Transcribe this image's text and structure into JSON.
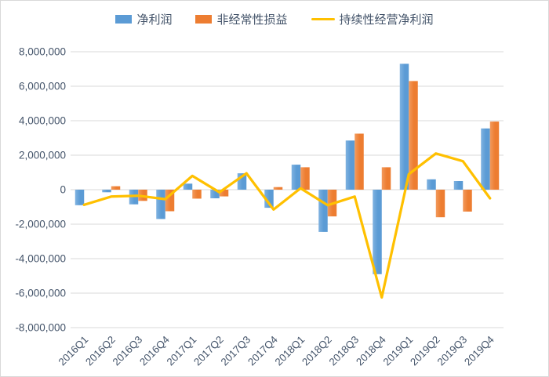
{
  "chart_data": {
    "type": "combo",
    "title": "",
    "xlabel": "",
    "ylabel": "",
    "categories": [
      "2016Q1",
      "2016Q2",
      "2016Q3",
      "2016Q4",
      "2017Q1",
      "2017Q2",
      "2017Q3",
      "2017Q4",
      "2018Q1",
      "2018Q2",
      "2018Q3",
      "2018Q4",
      "2019Q1",
      "2019Q2",
      "2019Q3",
      "2019Q4"
    ],
    "series": [
      {
        "name": "净利润",
        "type": "bar",
        "color": "#5B9BD5",
        "values": [
          -900000,
          -150000,
          -850000,
          -1700000,
          350000,
          -500000,
          950000,
          -1050000,
          1450000,
          -2450000,
          2850000,
          -4900000,
          7300000,
          600000,
          500000,
          3550000
        ]
      },
      {
        "name": "非经常性损益",
        "type": "bar",
        "color": "#ED7D31",
        "values": [
          0,
          200000,
          -650000,
          -1250000,
          -520000,
          -390000,
          0,
          150000,
          1300000,
          -1550000,
          3250000,
          1300000,
          6300000,
          -1600000,
          -1270000,
          3950000
        ]
      },
      {
        "name": "持续性经营净利润",
        "type": "line",
        "color": "#FFC000",
        "values": [
          -880000,
          -400000,
          -350000,
          -550000,
          800000,
          -150000,
          950000,
          -1150000,
          80000,
          -900000,
          -400000,
          -6250000,
          900000,
          2100000,
          1650000,
          -500000
        ]
      }
    ],
    "ylim": [
      -8000000,
      8000000
    ],
    "ytick_step": 2000000,
    "ytick_labels": [
      "8,000,000",
      "6,000,000",
      "4,000,000",
      "2,000,000",
      "0",
      "-2,000,000",
      "-4,000,000",
      "-6,000,000",
      "-8,000,000"
    ],
    "grid": true,
    "legend_position": "top",
    "colors": {
      "gridline": "#D9D9D9",
      "axis_text": "#44546A",
      "border": "#D9D9D9",
      "background": "#FFFFFF"
    }
  }
}
